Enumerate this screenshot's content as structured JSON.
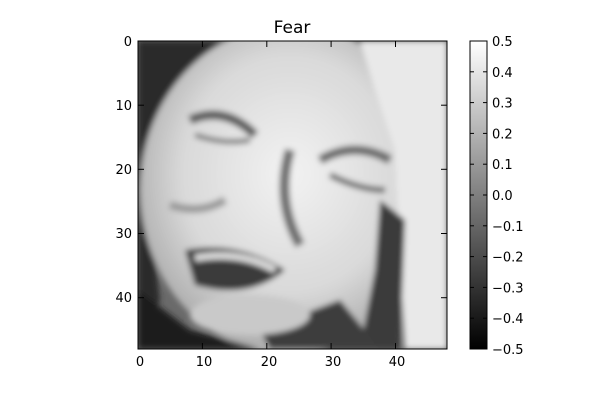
{
  "figure": {
    "title": "Fear",
    "xticks": [
      "0",
      "10",
      "20",
      "30",
      "40"
    ],
    "yticks": [
      "0",
      "10",
      "20",
      "30",
      "40"
    ],
    "colorbar_ticks": [
      "0.5",
      "0.4",
      "0.3",
      "0.2",
      "0.1",
      "0.0",
      "−0.1",
      "−0.2",
      "−0.3",
      "−0.4",
      "−0.5"
    ],
    "colormap": "gray",
    "image_extent": {
      "x": [
        0,
        48
      ],
      "y": [
        48,
        0
      ]
    },
    "value_range": [
      -0.5,
      0.5
    ]
  }
}
